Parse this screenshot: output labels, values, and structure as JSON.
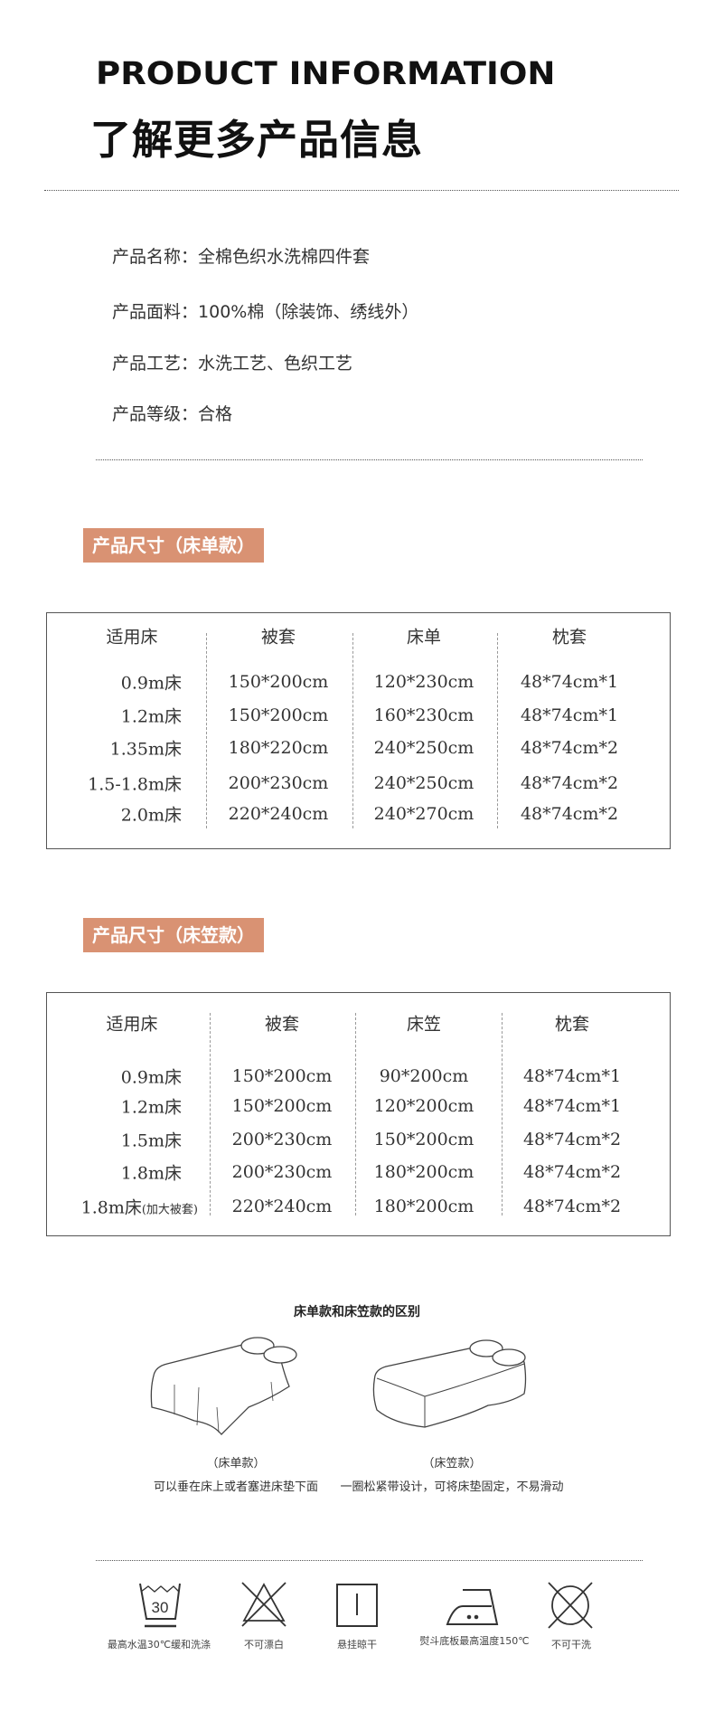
{
  "header": {
    "title_en": "PRODUCT INFORMATION",
    "title_cn": "了解更多产品信息"
  },
  "info": [
    {
      "label": "产品名称：",
      "value": "全棉色织水洗棉四件套"
    },
    {
      "label": "产品面料：",
      "value": "100%棉（除装饰、绣线外）"
    },
    {
      "label": "产品工艺：",
      "value": "水洗工艺、色织工艺"
    },
    {
      "label": "产品等级：",
      "value": "合格"
    }
  ],
  "sheet_section": {
    "badge": "产品尺寸（床单款）",
    "headers": [
      "适用床",
      "被套",
      "床单",
      "枕套"
    ],
    "rows": [
      [
        "0.9m床",
        "150*200cm",
        "120*230cm",
        "48*74cm*1"
      ],
      [
        "1.2m床",
        "150*200cm",
        "160*230cm",
        "48*74cm*1"
      ],
      [
        "1.35m床",
        "180*220cm",
        "240*250cm",
        "48*74cm*2"
      ],
      [
        "1.5-1.8m床",
        "200*230cm",
        "240*250cm",
        "48*74cm*2"
      ],
      [
        "2.0m床",
        "220*240cm",
        "240*270cm",
        "48*74cm*2"
      ]
    ]
  },
  "fitted_section": {
    "badge": "产品尺寸（床笠款）",
    "headers": [
      "适用床",
      "被套",
      "床笠",
      "枕套"
    ],
    "rows": [
      [
        "0.9m床",
        "150*200cm",
        "90*200cm",
        "48*74cm*1"
      ],
      [
        "1.2m床",
        "150*200cm",
        "120*200cm",
        "48*74cm*1"
      ],
      [
        "1.5m床",
        "200*230cm",
        "150*200cm",
        "48*74cm*2"
      ],
      [
        "1.8m床",
        "200*230cm",
        "180*200cm",
        "48*74cm*2"
      ],
      [
        "1.8m床",
        "220*240cm",
        "180*200cm",
        "48*74cm*2"
      ]
    ],
    "last_row_note": "(加大被套)"
  },
  "difference": {
    "title": "床单款和床笠款的区别",
    "sheet": {
      "caption": "（床单款）",
      "desc": "可以垂在床上或者塞进床垫下面"
    },
    "fitted": {
      "caption": "（床笠款）",
      "desc": "一圈松紧带设计，可将床垫固定，不易滑动"
    }
  },
  "care": [
    {
      "icon": "wash-30-icon",
      "label": "最高水温30℃缓和洗涤",
      "number": "30"
    },
    {
      "icon": "no-bleach-icon",
      "label": "不可漂白"
    },
    {
      "icon": "hang-dry-icon",
      "label": "悬挂晾干"
    },
    {
      "icon": "iron-150-icon",
      "label": "熨斗底板最高温度150℃"
    },
    {
      "icon": "no-dry-clean-icon",
      "label": "不可干洗"
    }
  ],
  "colors": {
    "badge": "#d99273"
  }
}
